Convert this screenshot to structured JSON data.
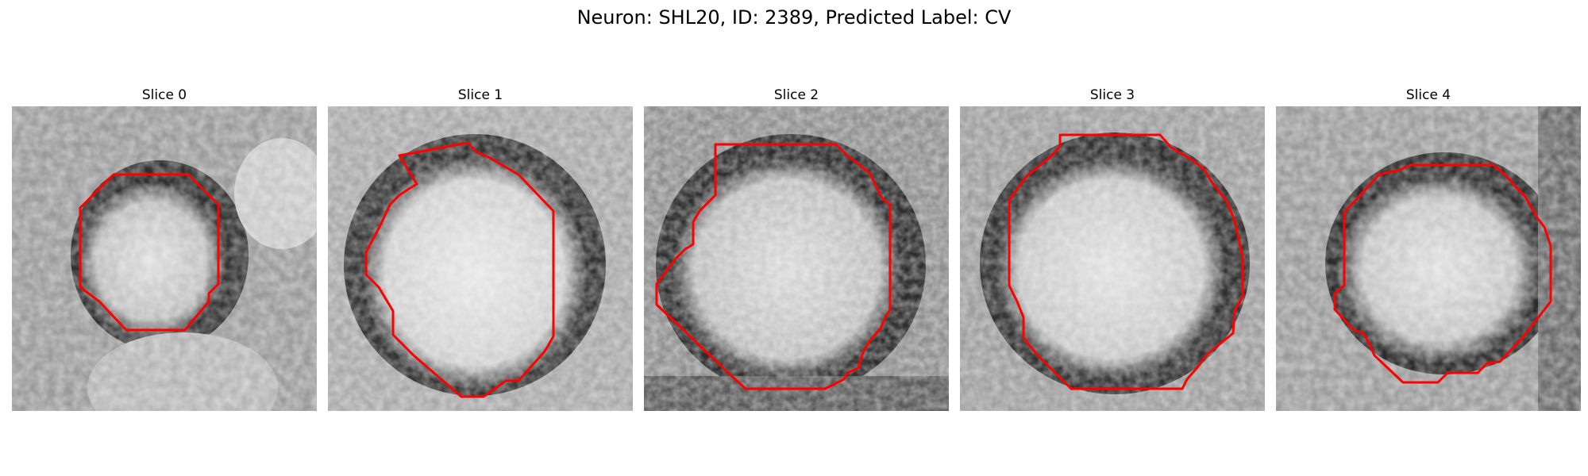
{
  "figure": {
    "title": "Neuron: SHL20, ID: 2389, Predicted Label: CV"
  },
  "style": {
    "contour_color": "#ff0000",
    "colormap": "gray"
  },
  "slices": [
    {
      "label": "Slice 0"
    },
    {
      "label": "Slice 1"
    },
    {
      "label": "Slice 2"
    },
    {
      "label": "Slice 3"
    },
    {
      "label": "Slice 4"
    }
  ]
}
